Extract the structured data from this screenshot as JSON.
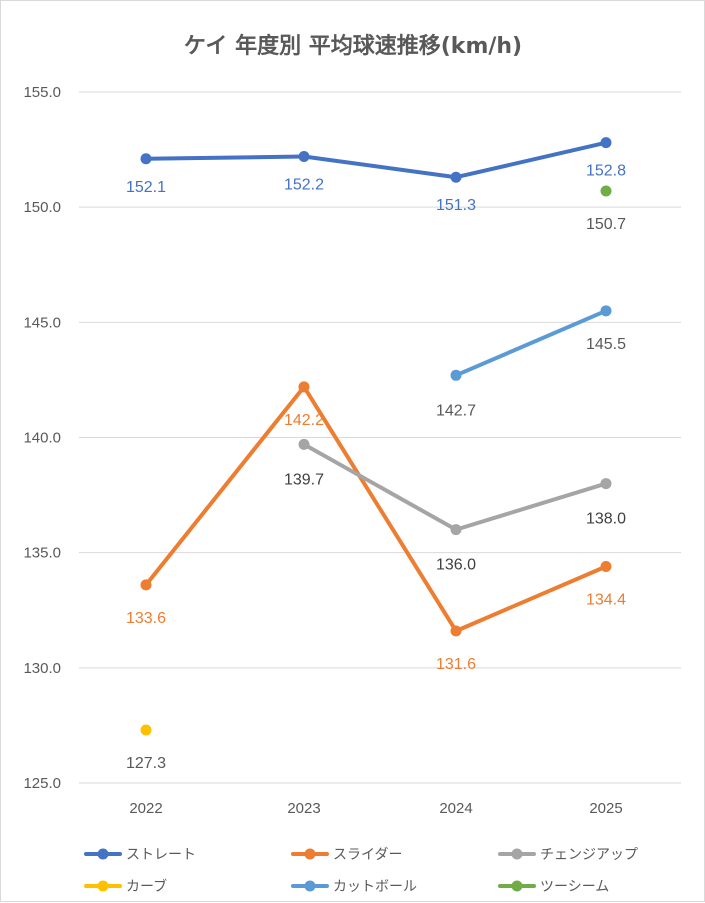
{
  "chart_data": {
    "type": "line",
    "title": "ケイ 年度別 平均球速推移(km/h)",
    "xlabel": "",
    "ylabel": "",
    "categories": [
      "2022",
      "2023",
      "2024",
      "2025"
    ],
    "ylim": [
      125,
      155
    ],
    "yticks": [
      "125.0",
      "130.0",
      "135.0",
      "140.0",
      "145.0",
      "150.0",
      "155.0"
    ],
    "grid": true,
    "legend_position": "bottom",
    "series": [
      {
        "name": "ストレート",
        "color": "#4472C4",
        "values": [
          152.1,
          152.2,
          151.3,
          152.8
        ],
        "labels": [
          "152.1",
          "152.2",
          "151.3",
          "152.8"
        ],
        "label_color": "#4472C4"
      },
      {
        "name": "スライダー",
        "color": "#ED7D31",
        "values": [
          133.6,
          142.2,
          131.6,
          134.4
        ],
        "labels": [
          "133.6",
          "142.2",
          "131.6",
          "134.4"
        ],
        "label_color": "#ED7D31"
      },
      {
        "name": "チェンジアップ",
        "color": "#A5A5A5",
        "values": [
          null,
          139.7,
          136.0,
          138.0
        ],
        "labels": [
          "",
          "139.7",
          "136.0",
          "138.0"
        ],
        "label_color": "#404040"
      },
      {
        "name": "カーブ",
        "color": "#FFC000",
        "values": [
          127.3,
          null,
          null,
          null
        ],
        "labels": [
          "127.3",
          "",
          "",
          ""
        ],
        "label_color": "#595959"
      },
      {
        "name": "カットボール",
        "color": "#5B9BD5",
        "values": [
          null,
          null,
          142.7,
          145.5
        ],
        "labels": [
          "",
          "",
          "142.7",
          "145.5"
        ],
        "label_color": "#595959"
      },
      {
        "name": "ツーシーム",
        "color": "#70AD47",
        "values": [
          null,
          null,
          null,
          150.7
        ],
        "labels": [
          "",
          "",
          "",
          "150.7"
        ],
        "label_color": "#595959"
      }
    ]
  }
}
